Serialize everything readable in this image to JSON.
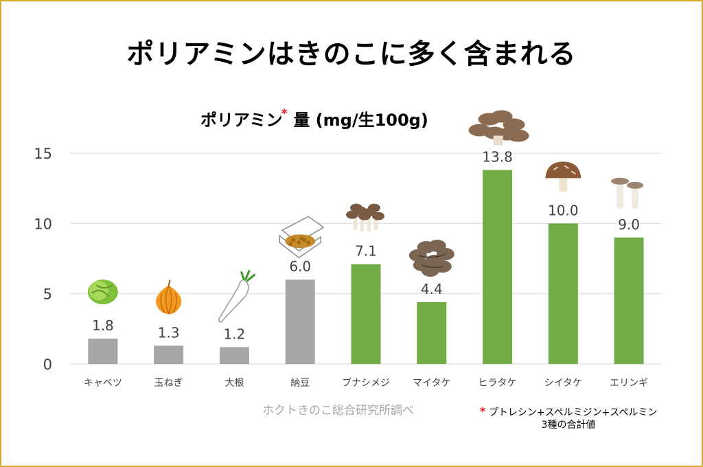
{
  "title": "ポリアミンはきのこに多く含まれる",
  "chart_data": {
    "type": "bar",
    "title": "ポリアミン",
    "title_marker": "*",
    "title_suffix": "量 (mg/生100g)",
    "categories": [
      "キャベツ",
      "玉ねぎ",
      "大根",
      "納豆",
      "ブナシメジ",
      "マイタケ",
      "ヒラタケ",
      "シイタケ",
      "エリンギ"
    ],
    "values": [
      1.8,
      1.3,
      1.2,
      6.0,
      7.1,
      4.4,
      13.8,
      10.0,
      9.0
    ],
    "value_labels": [
      "1.8",
      "1.3",
      "1.2",
      "6.0",
      "7.1",
      "4.4",
      "13.8",
      "10.0",
      "9.0"
    ],
    "bar_colors": [
      "#a6a6a6",
      "#a6a6a6",
      "#a6a6a6",
      "#a6a6a6",
      "#70ad47",
      "#70ad47",
      "#70ad47",
      "#70ad47",
      "#70ad47"
    ],
    "icons": [
      "cabbage-icon",
      "onion-icon",
      "daikon-icon",
      "natto-icon",
      "bunashimeji-icon",
      "maitake-icon",
      "hiratake-icon",
      "shiitake-icon",
      "eryngii-icon"
    ],
    "ylim": [
      0,
      15
    ],
    "yticks": [
      0,
      5,
      10,
      15
    ],
    "grid": true,
    "legend": "none"
  },
  "source_note": "ホクトきのこ総合研究所調べ",
  "footnote": {
    "marker": "*",
    "line1": "プトレシン+スペルミジン+スペルミン",
    "line2": "3種の合計値"
  },
  "colors": {
    "frame": "#d4a92a",
    "gray_bar": "#a6a6a6",
    "green_bar": "#70ad47",
    "grid": "#d9d9d9",
    "asterisk": "#e8202a"
  }
}
